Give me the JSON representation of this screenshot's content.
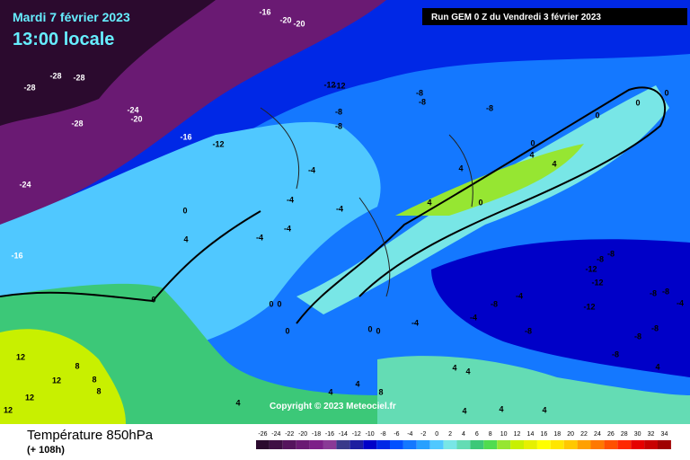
{
  "header": {
    "date": "Mardi 7 février 2023",
    "time": "13:00 locale",
    "run": "Run GEM 0 Z du Vendredi 3 février 2023"
  },
  "map": {
    "copyright": "Copyright © 2023 Meteociel.fr",
    "labels": [
      -16,
      -20,
      -20,
      -28,
      -28,
      -28,
      -12,
      -12,
      -8,
      -8,
      -8,
      -24,
      -20,
      -28,
      -16,
      -12,
      -8,
      -8,
      -4,
      -4,
      -4,
      -4,
      -4,
      -24,
      -16,
      0,
      4,
      0,
      0,
      0,
      0,
      0,
      0,
      4,
      4,
      0,
      0,
      4,
      4,
      0,
      0,
      0,
      -8,
      -8,
      -12,
      -12,
      -12,
      -8,
      -8,
      -4,
      -8,
      -8,
      -8,
      4,
      -4,
      -8,
      -4,
      -4,
      -8,
      12,
      12,
      8,
      8,
      12,
      12,
      8,
      4,
      4,
      4,
      8,
      4,
      4,
      4,
      4,
      4
    ]
  },
  "footer": {
    "title": "Température 850hPa",
    "lead": "(+ 108h)"
  },
  "scale": {
    "ticks": [
      -26,
      -24,
      -22,
      -20,
      -18,
      -16,
      -14,
      -12,
      -10,
      -8,
      -6,
      -4,
      -2,
      0,
      2,
      4,
      6,
      8,
      10,
      12,
      14,
      16,
      18,
      20,
      22,
      24,
      26,
      28,
      30,
      32,
      34
    ],
    "colors": [
      "#2b0a2e",
      "#3f0f45",
      "#55145d",
      "#6a1a73",
      "#7d2088",
      "#8a3a96",
      "#3a3a8a",
      "#1e1ea0",
      "#0000c8",
      "#0028e6",
      "#0050ff",
      "#1478ff",
      "#28a0ff",
      "#50c8ff",
      "#78e6e6",
      "#64dcb4",
      "#3cc878",
      "#50dc50",
      "#96e632",
      "#c8f000",
      "#e6f000",
      "#ffff00",
      "#ffe600",
      "#ffc800",
      "#ffa000",
      "#ff7800",
      "#ff5000",
      "#ff2800",
      "#e60000",
      "#c80000",
      "#a00000"
    ]
  }
}
